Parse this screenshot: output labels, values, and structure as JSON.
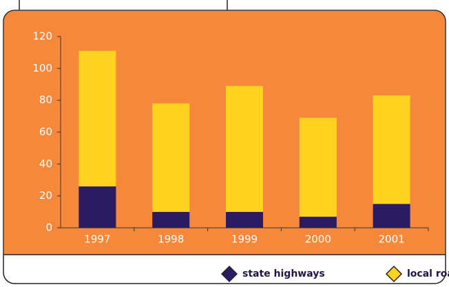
{
  "chart_data": {
    "type": "stacked_bar",
    "categories": [
      "1997",
      "1998",
      "1999",
      "2000",
      "2001"
    ],
    "series": [
      {
        "name": "state highways",
        "color": "#2b1b63",
        "values": [
          26,
          10,
          10,
          7,
          15
        ]
      },
      {
        "name": "local roads",
        "color": "#ffd21f",
        "values": [
          85,
          68,
          79,
          62,
          68
        ]
      }
    ],
    "ylim": [
      0,
      120
    ],
    "yticks": [
      0,
      20,
      40,
      60,
      80,
      100,
      120
    ]
  }
}
